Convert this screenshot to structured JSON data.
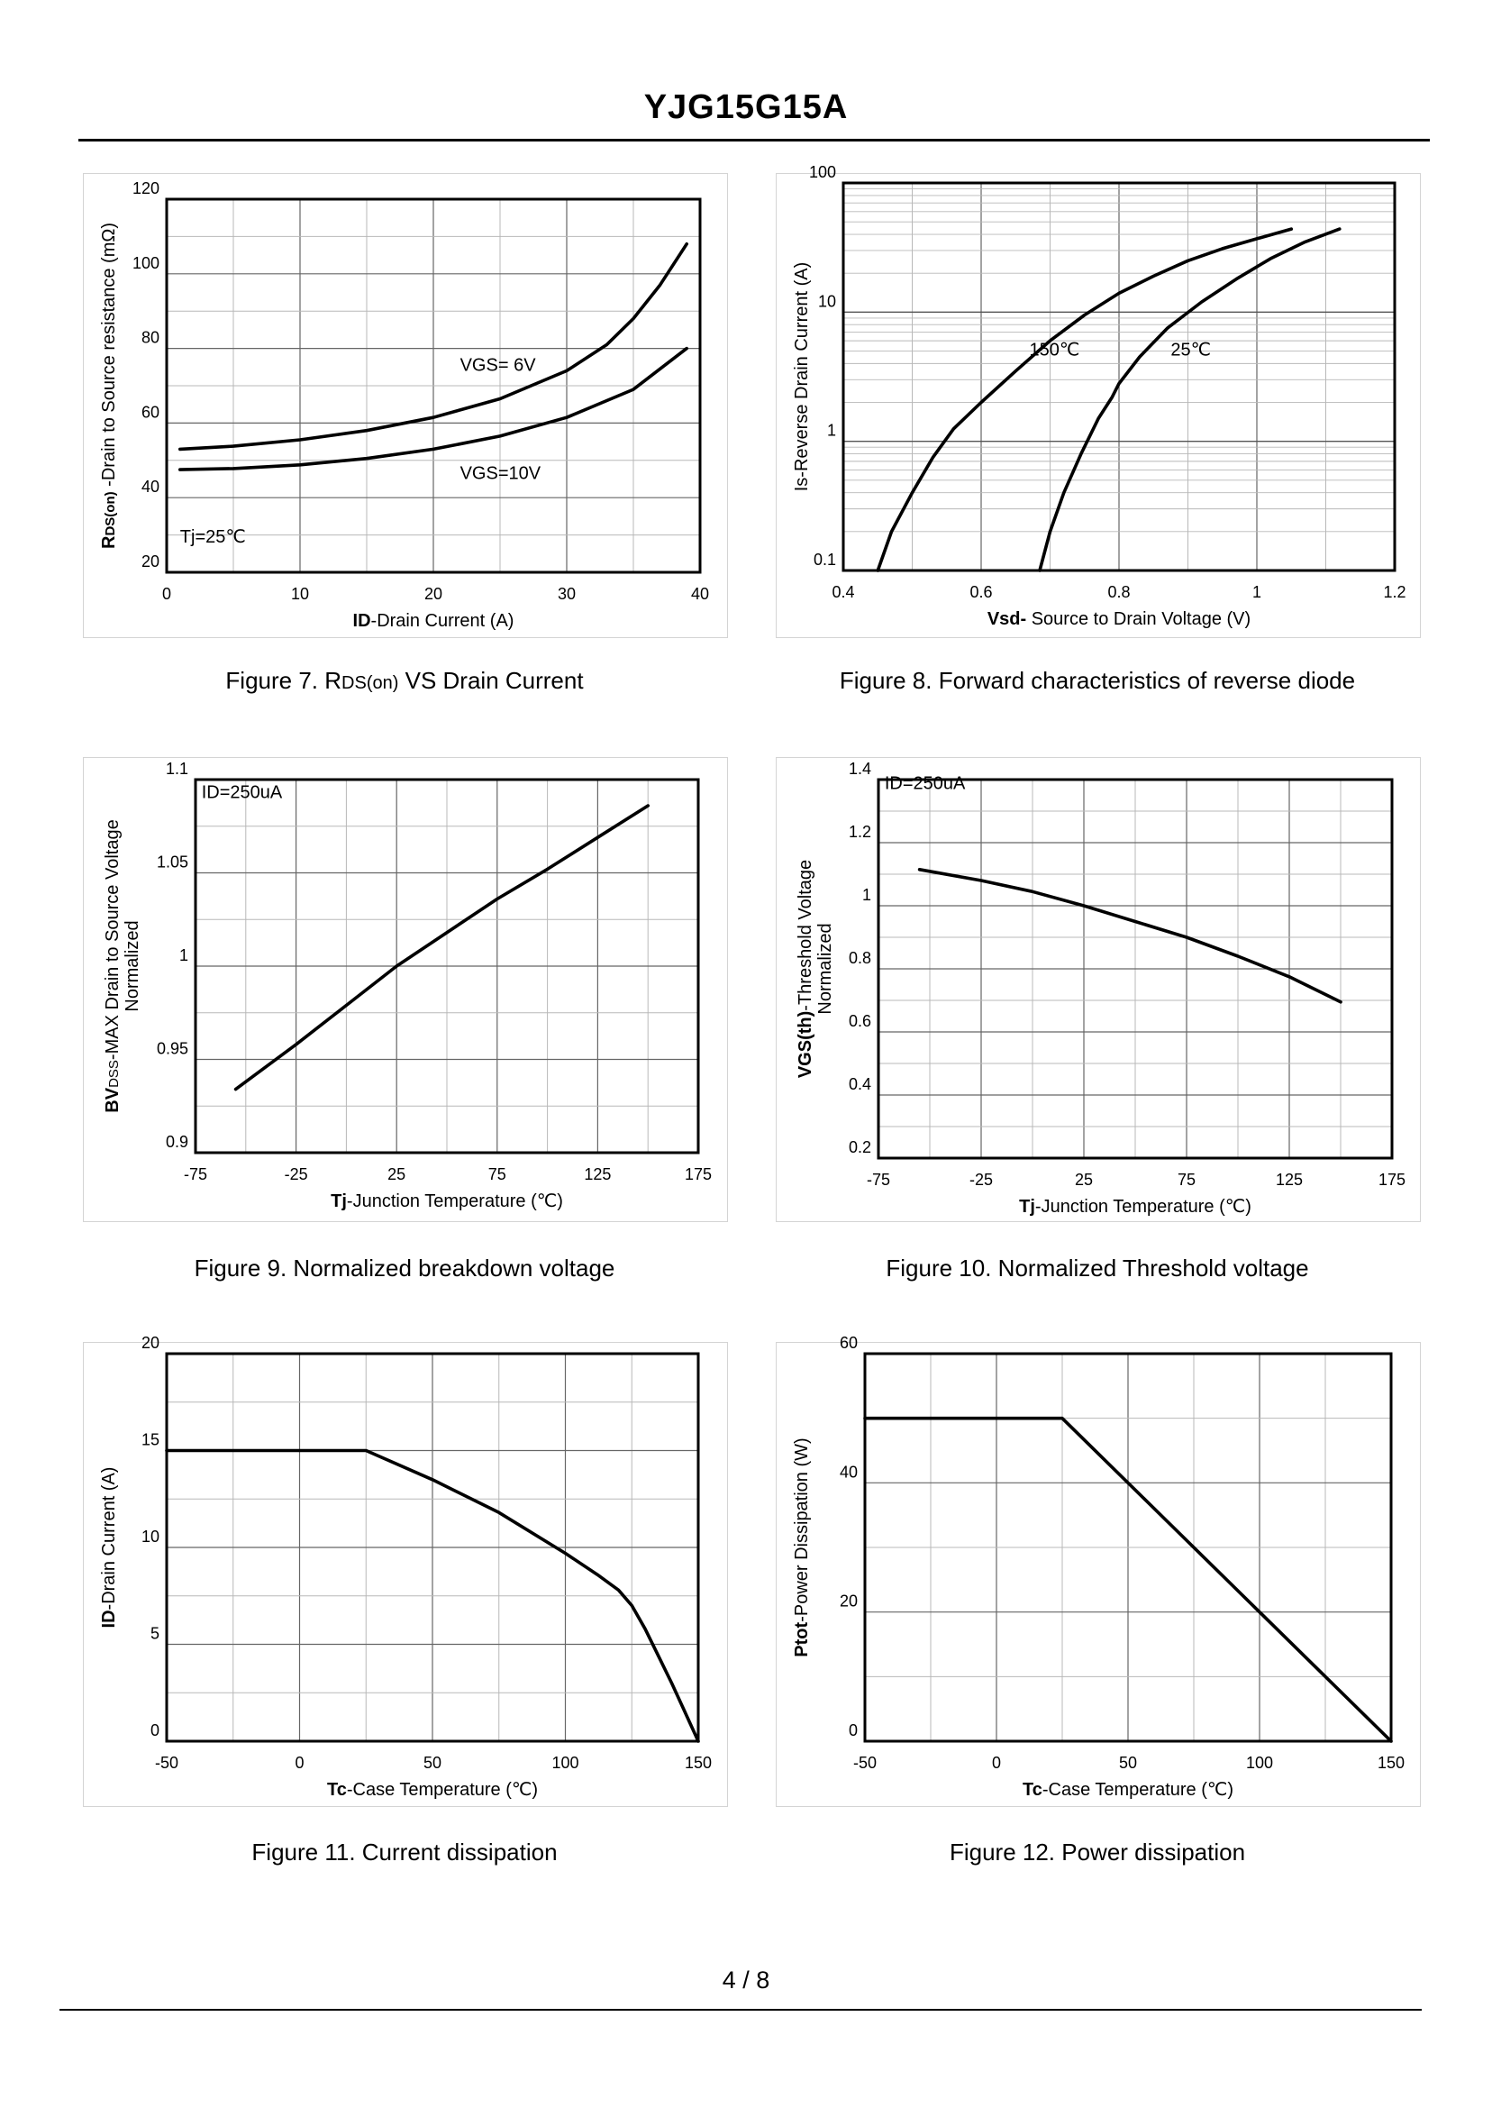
{
  "header": {
    "title": "YJG15G15A"
  },
  "footer": {
    "page": "4 / 8"
  },
  "chart_data": [
    {
      "id": "fig7",
      "type": "line",
      "caption_prefix": "Figure 7.  R",
      "caption_sub": "DS(on)",
      "caption_suffix": " VS Drain Current",
      "ylabel_parts": [
        {
          "t": "R",
          "bold": true
        },
        {
          "t": "DS(on)",
          "bold": true,
          "small": true
        },
        {
          "t": " -Drain to Source resistance (mΩ)"
        }
      ],
      "xlabel_parts": [
        {
          "t": "ID",
          "bold": true
        },
        {
          "t": "-Drain Current (A)"
        }
      ],
      "xlim": [
        0,
        40
      ],
      "ylim": [
        20,
        120
      ],
      "xticks": [
        0,
        10,
        20,
        30,
        40
      ],
      "xtick_labels": [
        "0",
        "10",
        "20",
        "30",
        "40"
      ],
      "yticks": [
        20,
        40,
        60,
        80,
        100,
        120
      ],
      "ytick_labels": [
        "20",
        "40",
        "60",
        "80",
        "100",
        "120"
      ],
      "xgrid": [
        0,
        5,
        10,
        15,
        20,
        25,
        30,
        35,
        40
      ],
      "ygrid": [
        20,
        30,
        40,
        50,
        60,
        70,
        80,
        90,
        100,
        110,
        120
      ],
      "series": [
        {
          "name": "VGS= 6V",
          "x": [
            1,
            5,
            10,
            15,
            20,
            25,
            30,
            33,
            35,
            37,
            39
          ],
          "y": [
            53,
            53.8,
            55.5,
            58,
            61.5,
            66.5,
            74,
            81,
            88,
            97,
            108
          ]
        },
        {
          "name": "VGS=10V",
          "x": [
            1,
            5,
            10,
            15,
            20,
            25,
            30,
            35,
            39
          ],
          "y": [
            47.5,
            47.8,
            48.8,
            50.5,
            53,
            56.5,
            61.5,
            69,
            80
          ]
        }
      ],
      "annotations": [
        {
          "text": "VGS= 6V",
          "x": 22,
          "y": 74
        },
        {
          "text": "VGS=10V",
          "x": 22,
          "y": 45
        },
        {
          "text": "Tj=25℃",
          "x": 1,
          "y": 28
        }
      ]
    },
    {
      "id": "fig8",
      "type": "line",
      "yscale": "log",
      "caption": "Figure 8.  Forward characteristics of reverse diode",
      "ylabel_parts": [
        {
          "t": "Is-Reverse  Drain Current  (A)"
        }
      ],
      "xlabel_parts": [
        {
          "t": "Vsd-",
          "bold": true
        },
        {
          "t": " Source to Drain Voltage (V)"
        }
      ],
      "xlim": [
        0.4,
        1.2
      ],
      "ylim": [
        0.1,
        100
      ],
      "xticks": [
        0.4,
        0.6,
        0.8,
        1.0,
        1.2
      ],
      "xtick_labels": [
        "0.4",
        "0.6",
        "0.8",
        "1",
        "1.2"
      ],
      "yticks": [
        0.1,
        1,
        10,
        100
      ],
      "ytick_labels": [
        "0.1",
        "1",
        "10",
        "100"
      ],
      "xgrid": [
        0.4,
        0.5,
        0.6,
        0.7,
        0.8,
        0.9,
        1.0,
        1.1,
        1.2
      ],
      "series": [
        {
          "name": "150℃",
          "x": [
            0.45,
            0.47,
            0.5,
            0.53,
            0.56,
            0.6,
            0.65,
            0.7,
            0.75,
            0.8,
            0.85,
            0.9,
            0.95,
            1.0,
            1.05
          ],
          "y": [
            0.1,
            0.2,
            0.4,
            0.75,
            1.25,
            2.0,
            3.5,
            6.0,
            9.5,
            14,
            19,
            25,
            31,
            37,
            44
          ]
        },
        {
          "name": "25℃",
          "x": [
            0.685,
            0.7,
            0.72,
            0.745,
            0.77,
            0.79,
            0.8,
            0.83,
            0.87,
            0.92,
            0.97,
            1.02,
            1.07,
            1.12
          ],
          "y": [
            0.1,
            0.2,
            0.4,
            0.8,
            1.5,
            2.2,
            2.8,
            4.5,
            7.5,
            12,
            18,
            26,
            35,
            44
          ]
        }
      ],
      "annotations": [
        {
          "text": "150℃",
          "x": 0.67,
          "y": 4.6
        },
        {
          "text": "25℃",
          "x": 0.875,
          "y": 4.6
        }
      ]
    },
    {
      "id": "fig9",
      "type": "line",
      "caption": "Figure 9.  Normalized breakdown voltage",
      "ylabel_parts": [
        {
          "t": "BV",
          "bold": true
        },
        {
          "t": "DSS",
          "small": true
        },
        {
          "t": "-MAX Drain to Source Voltage"
        }
      ],
      "ylabel2": "Normalized",
      "xlabel_parts": [
        {
          "t": "Tj",
          "bold": true
        },
        {
          "t": "-Junction  Temperature  (℃)"
        }
      ],
      "xlim": [
        -75,
        175
      ],
      "ylim": [
        0.9,
        1.1
      ],
      "xticks": [
        -75,
        -25,
        25,
        75,
        125,
        175
      ],
      "xtick_labels": [
        "-75",
        "-25",
        "25",
        "75",
        "125",
        "175"
      ],
      "yticks": [
        0.9,
        0.95,
        1.0,
        1.05,
        1.1
      ],
      "ytick_labels": [
        "0.9",
        "0.95",
        "1",
        "1.05",
        "1.1"
      ],
      "xgrid": [
        -75,
        -50,
        -25,
        0,
        25,
        50,
        75,
        100,
        125,
        150,
        175
      ],
      "ygrid": [
        0.9,
        0.925,
        0.95,
        0.975,
        1.0,
        1.025,
        1.05,
        1.075,
        1.1
      ],
      "series": [
        {
          "name": "BVDSS",
          "x": [
            -55,
            -25,
            0,
            25,
            50,
            75,
            100,
            125,
            150
          ],
          "y": [
            0.934,
            0.958,
            0.979,
            1.0,
            1.018,
            1.036,
            1.052,
            1.069,
            1.086
          ]
        }
      ],
      "annotations": [
        {
          "text": "ID=250uA",
          "x": -72,
          "y": 1.09
        }
      ]
    },
    {
      "id": "fig10",
      "type": "line",
      "caption": "Figure 10.  Normalized Threshold voltage",
      "ylabel_parts": [
        {
          "t": "VGS(th)",
          "bold": true
        },
        {
          "t": "-Threshold  Voltage"
        }
      ],
      "ylabel2": "Normalized",
      "xlabel_parts": [
        {
          "t": "Tj",
          "bold": true
        },
        {
          "t": "-Junction  Temperature  (℃)"
        }
      ],
      "xlim": [
        -75,
        175
      ],
      "ylim": [
        0.2,
        1.4
      ],
      "xticks": [
        -75,
        -25,
        25,
        75,
        125,
        175
      ],
      "xtick_labels": [
        "-75",
        "-25",
        "25",
        "75",
        "125",
        "175"
      ],
      "yticks": [
        0.2,
        0.4,
        0.6,
        0.8,
        1.0,
        1.2,
        1.4
      ],
      "ytick_labels": [
        "0.2",
        "0.4",
        "0.6",
        "0.8",
        "1",
        "1.2",
        "1.4"
      ],
      "xgrid": [
        -75,
        -50,
        -25,
        0,
        25,
        50,
        75,
        100,
        125,
        150,
        175
      ],
      "ygrid": [
        0.2,
        0.3,
        0.4,
        0.5,
        0.6,
        0.7,
        0.8,
        0.9,
        1.0,
        1.1,
        1.2,
        1.3,
        1.4
      ],
      "series": [
        {
          "name": "VGS(th)",
          "x": [
            -55,
            -25,
            0,
            25,
            50,
            75,
            100,
            125,
            150
          ],
          "y": [
            1.115,
            1.08,
            1.045,
            1.0,
            0.95,
            0.9,
            0.84,
            0.775,
            0.695
          ]
        }
      ],
      "annotations": [
        {
          "text": "ID=250uA",
          "x": -72,
          "y": 1.37
        }
      ]
    },
    {
      "id": "fig11",
      "type": "line",
      "caption": "Figure 11.  Current dissipation",
      "ylabel_parts": [
        {
          "t": "ID",
          "bold": true
        },
        {
          "t": "-Drain Current (A)"
        }
      ],
      "xlabel_parts": [
        {
          "t": "Tc",
          "bold": true
        },
        {
          "t": "-Case Temperature (℃)"
        }
      ],
      "xlim": [
        -50,
        150
      ],
      "ylim": [
        0,
        20
      ],
      "xticks": [
        -50,
        0,
        50,
        100,
        150
      ],
      "xtick_labels": [
        "-50",
        "0",
        "50",
        "100",
        "150"
      ],
      "yticks": [
        0,
        5,
        10,
        15,
        20
      ],
      "ytick_labels": [
        "0",
        "5",
        "10",
        "15",
        "20"
      ],
      "xgrid": [
        -50,
        -25,
        0,
        25,
        50,
        75,
        100,
        125,
        150
      ],
      "ygrid": [
        0,
        2.5,
        5,
        7.5,
        10,
        12.5,
        15,
        17.5,
        20
      ],
      "series": [
        {
          "name": "ID",
          "x": [
            -50,
            25,
            50,
            75,
            100,
            112,
            120,
            125,
            130,
            135,
            140,
            145,
            150
          ],
          "y": [
            15,
            15,
            13.5,
            11.8,
            9.7,
            8.6,
            7.8,
            7.0,
            5.8,
            4.4,
            3.0,
            1.5,
            0
          ]
        }
      ]
    },
    {
      "id": "fig12",
      "type": "line",
      "caption": "Figure 12.  Power dissipation",
      "ylabel_parts": [
        {
          "t": "Ptot",
          "bold": true
        },
        {
          "t": "-Power Dissipation (W)"
        }
      ],
      "xlabel_parts": [
        {
          "t": "Tc",
          "bold": true
        },
        {
          "t": "-Case Temperature (℃)"
        }
      ],
      "xlim": [
        -50,
        150
      ],
      "ylim": [
        0,
        60
      ],
      "xticks": [
        -50,
        0,
        50,
        100,
        150
      ],
      "xtick_labels": [
        "-50",
        "0",
        "50",
        "100",
        "150"
      ],
      "yticks": [
        0,
        20,
        40,
        60
      ],
      "ytick_labels": [
        "0",
        "20",
        "40",
        "60"
      ],
      "xgrid": [
        -50,
        -25,
        0,
        25,
        50,
        75,
        100,
        125,
        150
      ],
      "ygrid": [
        0,
        10,
        20,
        30,
        40,
        50,
        60
      ],
      "series": [
        {
          "name": "Ptot",
          "x": [
            -50,
            25,
            150
          ],
          "y": [
            50,
            50,
            0
          ]
        }
      ]
    }
  ]
}
